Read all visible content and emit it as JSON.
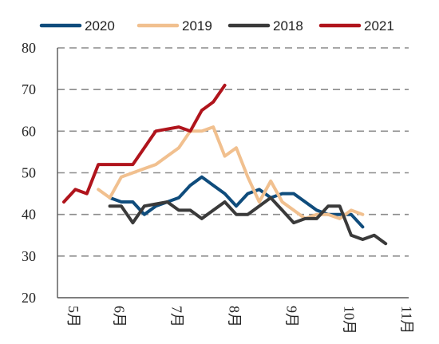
{
  "chart_data": {
    "type": "line",
    "title": "",
    "xlabel": "",
    "ylabel": "",
    "ylim": [
      20,
      80
    ],
    "yticks": [
      20,
      30,
      40,
      50,
      60,
      70,
      80
    ],
    "grid": "horizontal-dashed",
    "legend_position": "top",
    "x_tick_labels": [
      {
        "label": "5月",
        "x": 0
      },
      {
        "label": "6月",
        "x": 4
      },
      {
        "label": "7月",
        "x": 9
      },
      {
        "label": "8月",
        "x": 14
      },
      {
        "label": "9月",
        "x": 19
      },
      {
        "label": "10月",
        "x": 24
      },
      {
        "label": "11月",
        "x": 29
      }
    ],
    "series": [
      {
        "name": "2020",
        "color": "#0f4c7c",
        "points": [
          [
            4,
            44
          ],
          [
            5,
            43
          ],
          [
            6,
            43
          ],
          [
            7,
            40
          ],
          [
            8,
            42
          ],
          [
            9,
            43
          ],
          [
            10,
            44
          ],
          [
            11,
            47
          ],
          [
            12,
            49
          ],
          [
            13,
            47
          ],
          [
            14,
            45
          ],
          [
            15,
            42
          ],
          [
            16,
            45
          ],
          [
            17,
            46
          ],
          [
            18,
            44
          ],
          [
            19,
            45
          ],
          [
            20,
            45
          ],
          [
            21,
            43
          ],
          [
            22,
            41
          ],
          [
            23,
            40
          ],
          [
            24,
            40
          ],
          [
            25,
            40
          ],
          [
            26,
            37
          ]
        ]
      },
      {
        "name": "2019",
        "color": "#f1c08f",
        "points": [
          [
            3,
            46
          ],
          [
            4,
            44
          ],
          [
            5,
            49
          ],
          [
            6,
            50
          ],
          [
            7,
            51
          ],
          [
            8,
            52
          ],
          [
            9,
            54
          ],
          [
            10,
            56
          ],
          [
            11,
            60
          ],
          [
            12,
            60
          ],
          [
            13,
            61
          ],
          [
            14,
            54
          ],
          [
            15,
            56
          ],
          [
            16,
            49
          ],
          [
            17,
            43
          ],
          [
            18,
            48
          ],
          [
            19,
            43
          ],
          [
            20,
            41
          ],
          [
            21,
            39
          ],
          [
            22,
            40
          ],
          [
            23,
            40
          ],
          [
            24,
            39
          ],
          [
            25,
            41
          ],
          [
            26,
            40
          ]
        ]
      },
      {
        "name": "2018",
        "color": "#3a3a3a",
        "points": [
          [
            4,
            42
          ],
          [
            5,
            42
          ],
          [
            6,
            38
          ],
          [
            7,
            42
          ],
          [
            8,
            42.5
          ],
          [
            9,
            43
          ],
          [
            10,
            41
          ],
          [
            11,
            41
          ],
          [
            12,
            39
          ],
          [
            13,
            41
          ],
          [
            14,
            43
          ],
          [
            15,
            40
          ],
          [
            16,
            40
          ],
          [
            17,
            42
          ],
          [
            18,
            44
          ],
          [
            19,
            41
          ],
          [
            20,
            38
          ],
          [
            21,
            39
          ],
          [
            22,
            39
          ],
          [
            23,
            42
          ],
          [
            24,
            42
          ],
          [
            25,
            35
          ],
          [
            26,
            34
          ],
          [
            27,
            35
          ],
          [
            28,
            33
          ]
        ]
      },
      {
        "name": "2021",
        "color": "#b0141c",
        "points": [
          [
            0,
            43
          ],
          [
            1,
            46
          ],
          [
            2,
            45
          ],
          [
            3,
            52
          ],
          [
            4,
            52
          ],
          [
            5,
            52
          ],
          [
            6,
            52
          ],
          [
            7,
            56
          ],
          [
            8,
            60
          ],
          [
            9,
            60.5
          ],
          [
            10,
            61
          ],
          [
            11,
            60
          ],
          [
            12,
            65
          ],
          [
            13,
            67
          ],
          [
            14,
            71
          ]
        ]
      }
    ]
  }
}
